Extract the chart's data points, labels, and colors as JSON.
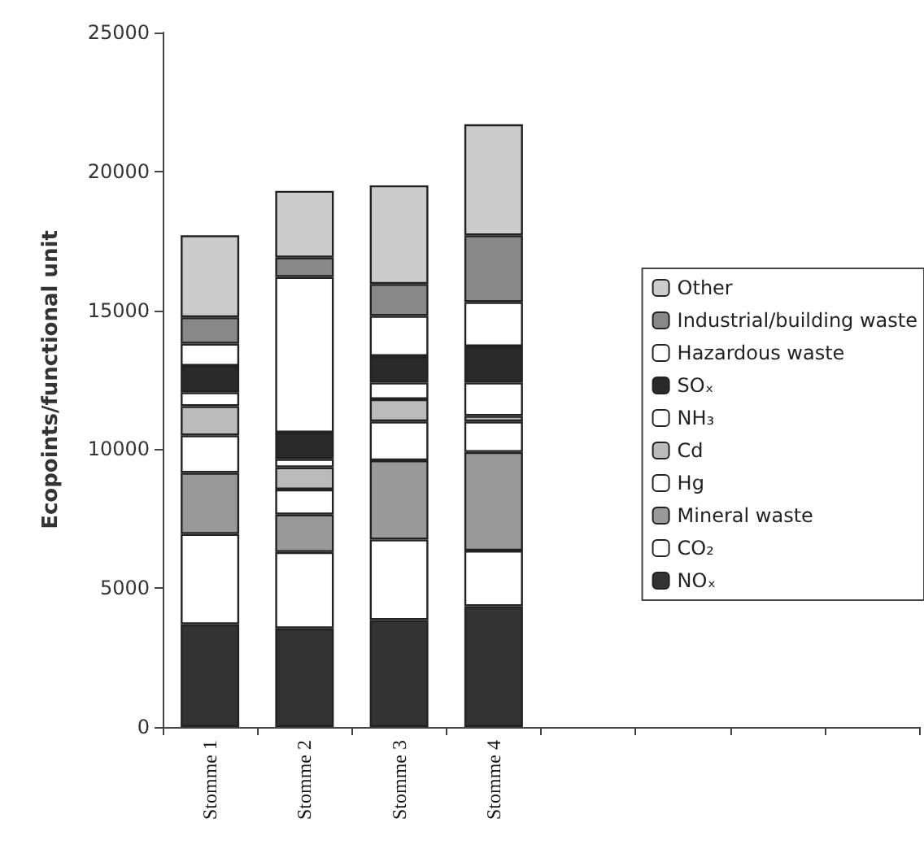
{
  "chart_data": {
    "type": "bar",
    "stacked": true,
    "ylabel": "Ecopoints/functional unit",
    "categories": [
      "Stomme 1",
      "Stomme 2",
      "Stomme 3",
      "Stomme 4",
      null,
      null,
      null,
      null
    ],
    "ylim": [
      0,
      25000
    ],
    "yticks": [
      0,
      5000,
      10000,
      15000,
      20000,
      25000
    ],
    "grid": false,
    "legend": "right",
    "series": [
      {
        "name": "NOₓ",
        "color": "#333333",
        "values": [
          3700,
          3550,
          3850,
          4350,
          null,
          null,
          null,
          null
        ]
      },
      {
        "name": "CO₂",
        "color": "#ffffff",
        "values": [
          3250,
          2750,
          2900,
          2000,
          null,
          null,
          null,
          null
        ]
      },
      {
        "name": "Mineral waste",
        "color": "#999999",
        "values": [
          2200,
          1350,
          2850,
          3550,
          null,
          null,
          null,
          null
        ]
      },
      {
        "name": "Hg",
        "color": "#ffffff",
        "values": [
          1350,
          900,
          1400,
          1100,
          null,
          null,
          null,
          null
        ]
      },
      {
        "name": "Cd",
        "color": "#bbbbbb",
        "values": [
          1050,
          800,
          800,
          200,
          null,
          null,
          null,
          null
        ]
      },
      {
        "name": "NH₃",
        "color": "#ffffff",
        "values": [
          500,
          300,
          600,
          1200,
          null,
          null,
          null,
          null
        ]
      },
      {
        "name": "SOₓ",
        "color": "#2a2a2a",
        "values": [
          950,
          950,
          950,
          1300,
          null,
          null,
          null,
          null
        ]
      },
      {
        "name": "Hazardous waste",
        "color": "#ffffff",
        "values": [
          800,
          5600,
          1450,
          1600,
          null,
          null,
          null,
          null
        ]
      },
      {
        "name": "Industrial/building waste",
        "color": "#888888",
        "values": [
          950,
          700,
          1150,
          2400,
          null,
          null,
          null,
          null
        ]
      },
      {
        "name": "Other",
        "color": "#cccccc",
        "values": [
          2950,
          2400,
          3550,
          4000,
          null,
          null,
          null,
          null
        ]
      }
    ]
  }
}
